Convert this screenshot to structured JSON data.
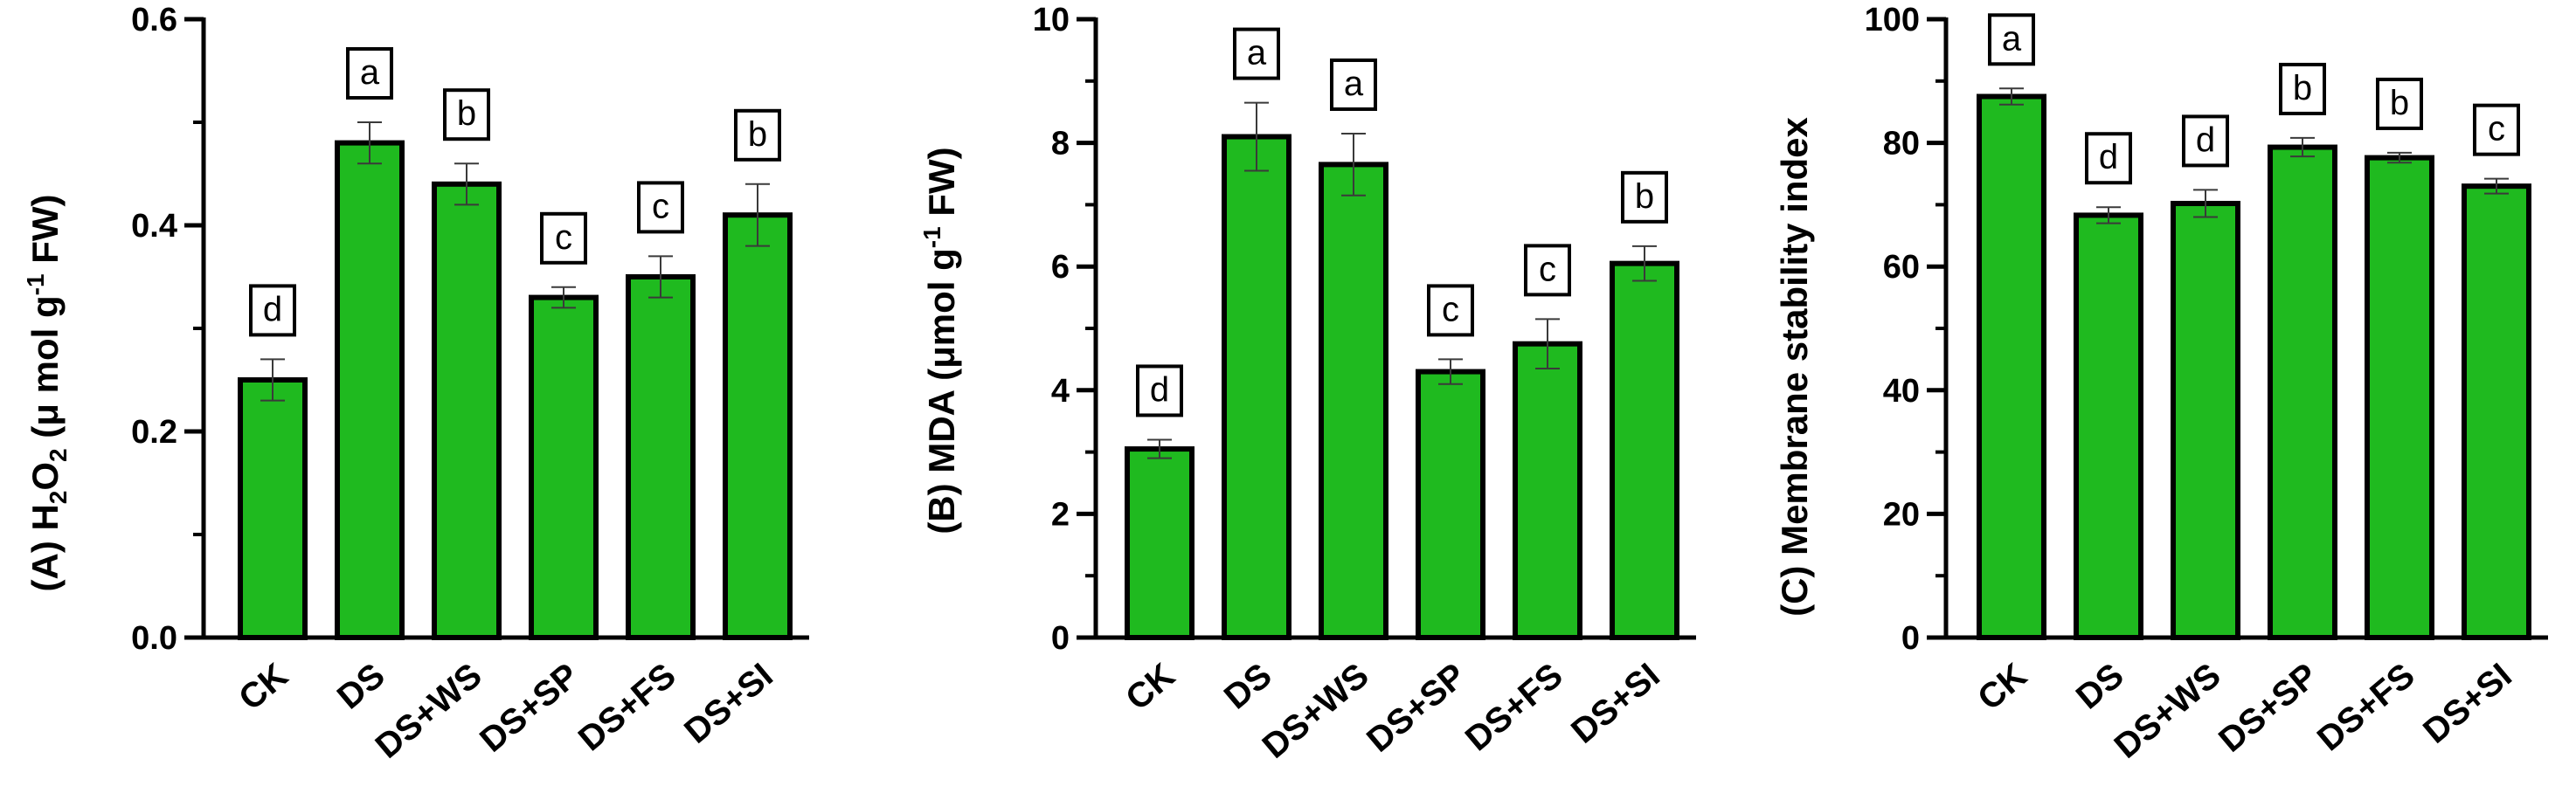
{
  "colors": {
    "bar_fill": "#1fba1f",
    "bar_stroke": "#000000",
    "axis": "#000000",
    "error_bar": "#3a3a3a",
    "label_box": "#ffffff"
  },
  "chart_data": [
    {
      "type": "bar",
      "panel": "(A)",
      "ylabel_main": "(A) H",
      "ylabel_sub1": "2",
      "ylabel_mid": "O",
      "ylabel_sub2": "2",
      "ylabel_rest": " (μ mol g",
      "ylabel_sup": "-1",
      "ylabel_end": " FW)",
      "ylabel_text": "(A) H2O2 (μ mol g-1 FW)",
      "categories": [
        "CK",
        "DS",
        "DS+WS",
        "DS+SP",
        "DS+FS",
        "DS+SI"
      ],
      "values": [
        0.25,
        0.48,
        0.44,
        0.33,
        0.35,
        0.41
      ],
      "errors": [
        0.02,
        0.02,
        0.02,
        0.01,
        0.02,
        0.03
      ],
      "significance": [
        "d",
        "a",
        "b",
        "c",
        "c",
        "b"
      ],
      "ylim": [
        0,
        0.6
      ],
      "yticks": [
        0.0,
        0.2,
        0.4,
        0.6
      ],
      "ytick_labels": [
        "0.0",
        "0.2",
        "0.4",
        "0.6"
      ]
    },
    {
      "type": "bar",
      "panel": "(B)",
      "ylabel_main": "(B) MDA (μmol g",
      "ylabel_sup": "-1",
      "ylabel_end": " FW)",
      "ylabel_text": "(B) MDA (μmol g-1 FW)",
      "categories": [
        "CK",
        "DS",
        "DS+WS",
        "DS+SP",
        "DS+FS",
        "DS+SI"
      ],
      "values": [
        3.05,
        8.1,
        7.65,
        4.3,
        4.75,
        6.05
      ],
      "errors": [
        0.15,
        0.55,
        0.5,
        0.2,
        0.4,
        0.28
      ],
      "significance": [
        "d",
        "a",
        "a",
        "c",
        "c",
        "b"
      ],
      "ylim": [
        0,
        10
      ],
      "yticks": [
        0,
        2,
        4,
        6,
        8,
        10
      ],
      "ytick_labels": [
        "0",
        "2",
        "4",
        "6",
        "8",
        "10"
      ]
    },
    {
      "type": "bar",
      "panel": "(C)",
      "ylabel_text": "(C) Membrane stability index",
      "categories": [
        "CK",
        "DS",
        "DS+WS",
        "DS+SP",
        "DS+FS",
        "DS+SI"
      ],
      "values": [
        87.5,
        68.3,
        70.2,
        79.3,
        77.6,
        73.0
      ],
      "errors": [
        1.3,
        1.3,
        2.2,
        1.5,
        0.8,
        1.2
      ],
      "significance": [
        "a",
        "d",
        "d",
        "b",
        "b",
        "c"
      ],
      "ylim": [
        0,
        100
      ],
      "yticks": [
        0,
        20,
        40,
        60,
        80,
        100
      ],
      "ytick_labels": [
        "0",
        "20",
        "40",
        "60",
        "80",
        "100"
      ]
    }
  ]
}
